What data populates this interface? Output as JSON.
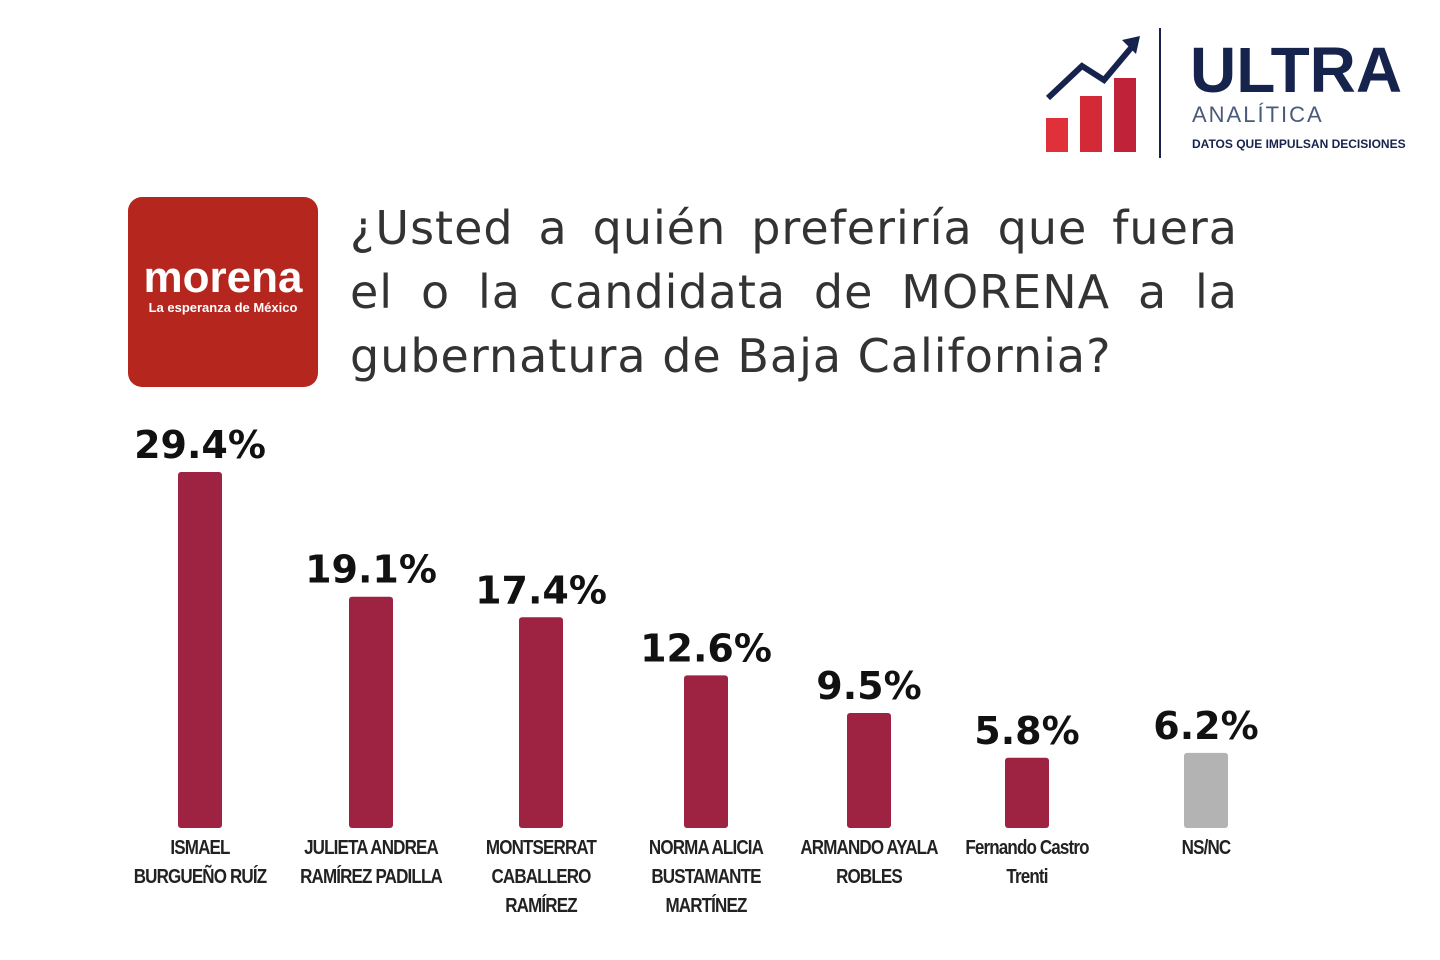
{
  "header": {
    "brand": "ULTRA",
    "brand_sub": "ANALÍTICA",
    "tagline": "DATOS QUE IMPULSAN DECISIONES"
  },
  "party_logo": {
    "name": "morena",
    "slogan": "La esperanza de México"
  },
  "chart_data": {
    "type": "bar",
    "title": "¿Usted a quién preferiría que fuera el o la candidata de MORENA a la gubernatura de Baja California?",
    "categories": [
      "ISMAEL BURGUEÑO RUÍZ",
      "JULIETA ANDREA RAMÍREZ PADILLA",
      "MONTSERRAT CABALLERO RAMÍREZ",
      "NORMA ALICIA BUSTAMANTE MARTÍNEZ",
      "ARMANDO AYALA ROBLES",
      "Fernando Castro Trenti",
      "NS/NC"
    ],
    "values": [
      29.4,
      19.1,
      17.4,
      12.6,
      9.5,
      5.8,
      6.2
    ],
    "value_labels": [
      "29.4%",
      "19.1%",
      "17.4%",
      "12.6%",
      "9.5%",
      "5.8%",
      "6.2%"
    ],
    "colors": [
      "#9e2241",
      "#9e2241",
      "#9e2241",
      "#9e2241",
      "#9e2241",
      "#9e2241",
      "#b3b3b3"
    ]
  }
}
